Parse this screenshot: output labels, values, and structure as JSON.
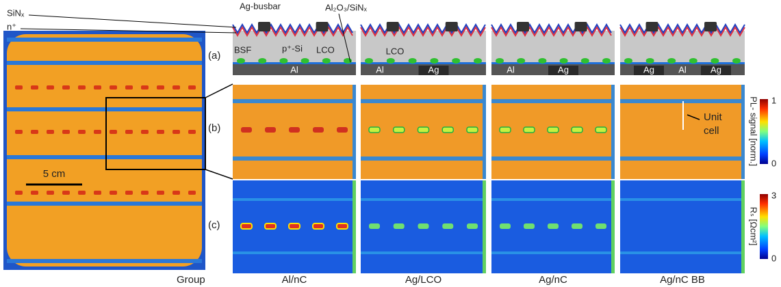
{
  "left_image": {
    "scale_bar": "5 cm"
  },
  "schematic": {
    "panel_label": "(a)",
    "labels": {
      "sinx": "SiNₓ",
      "n_plus": "n⁺",
      "busbar": "Ag-busbar",
      "passivation": "Al₂O₃/SiNₓ",
      "bsf": "BSF",
      "p_si": "p⁺-Si",
      "lco": "LCO"
    },
    "columns": [
      {
        "metal_labels": [
          "Al"
        ]
      },
      {
        "lco": "LCO",
        "metal_labels": [
          "Al",
          "Ag"
        ]
      },
      {
        "metal_labels": [
          "Al",
          "Ag"
        ]
      },
      {
        "metal_labels": [
          "Ag",
          "Al",
          "Ag"
        ]
      }
    ]
  },
  "pl_row": {
    "panel_label": "(b)",
    "annotation": [
      "Unit",
      "cell"
    ],
    "colorbar": {
      "label": "PL- signal [norm.]",
      "max": "1",
      "min": "0"
    }
  },
  "rs_row": {
    "panel_label": "(c)",
    "colorbar": {
      "label": "Rₛ [Ωcm²]",
      "max": "3",
      "min": "0"
    }
  },
  "groups": {
    "header": "Group",
    "names": [
      "Al/nC",
      "Ag/LCO",
      "Ag/nC",
      "Ag/nC BB"
    ]
  }
}
